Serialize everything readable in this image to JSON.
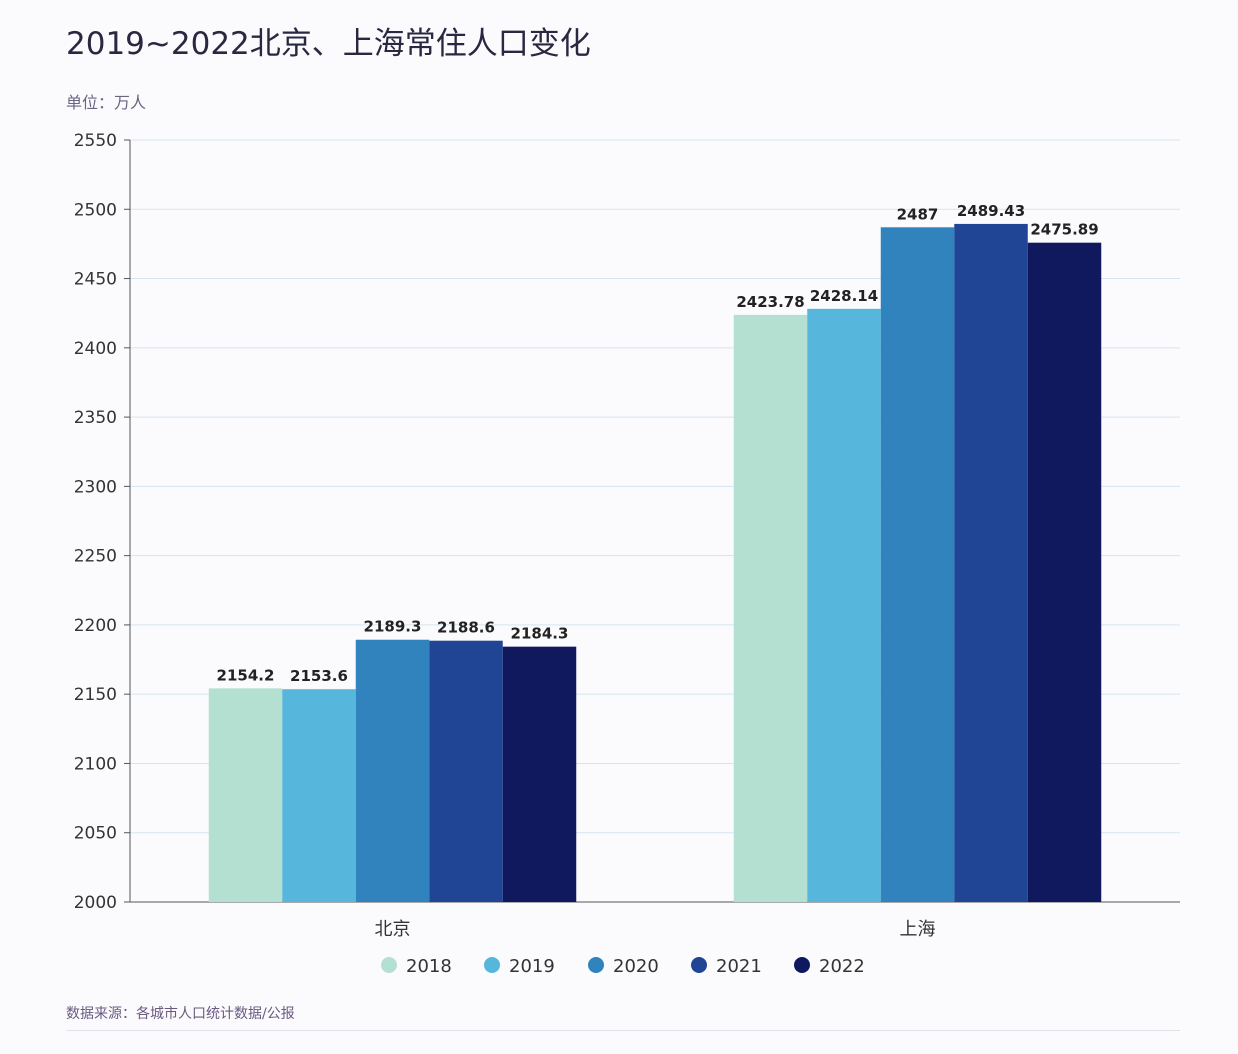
{
  "chart_data": {
    "type": "bar",
    "title": "2019~2022北京、上海常住人口变化",
    "unit_label": "单位：万人",
    "categories": [
      "北京",
      "上海"
    ],
    "series": [
      {
        "name": "2018",
        "color": "#b4e0d2",
        "values": [
          2154.2,
          2423.78
        ]
      },
      {
        "name": "2019",
        "color": "#56b6dc",
        "values": [
          2153.6,
          2428.14
        ]
      },
      {
        "name": "2020",
        "color": "#3183bd",
        "values": [
          2189.3,
          2487
        ]
      },
      {
        "name": "2021",
        "color": "#1f4594",
        "values": [
          2188.6,
          2489.43
        ]
      },
      {
        "name": "2022",
        "color": "#10195e",
        "values": [
          2184.3,
          2475.89
        ]
      }
    ],
    "data_labels": [
      [
        "2154.2",
        "2423.78"
      ],
      [
        "2153.6",
        "2428.14"
      ],
      [
        "2189.3",
        "2487"
      ],
      [
        "2188.6",
        "2489.43"
      ],
      [
        "2184.3",
        "2475.89"
      ]
    ],
    "yticks": [
      "2000",
      "2050",
      "2100",
      "2150",
      "2200",
      "2250",
      "2300",
      "2350",
      "2400",
      "2450",
      "2500",
      "2550"
    ],
    "ylim": [
      2000,
      2550
    ],
    "grid": true,
    "legend_position": "bottom"
  },
  "source": "数据来源：各城市人口统计数据/公报"
}
